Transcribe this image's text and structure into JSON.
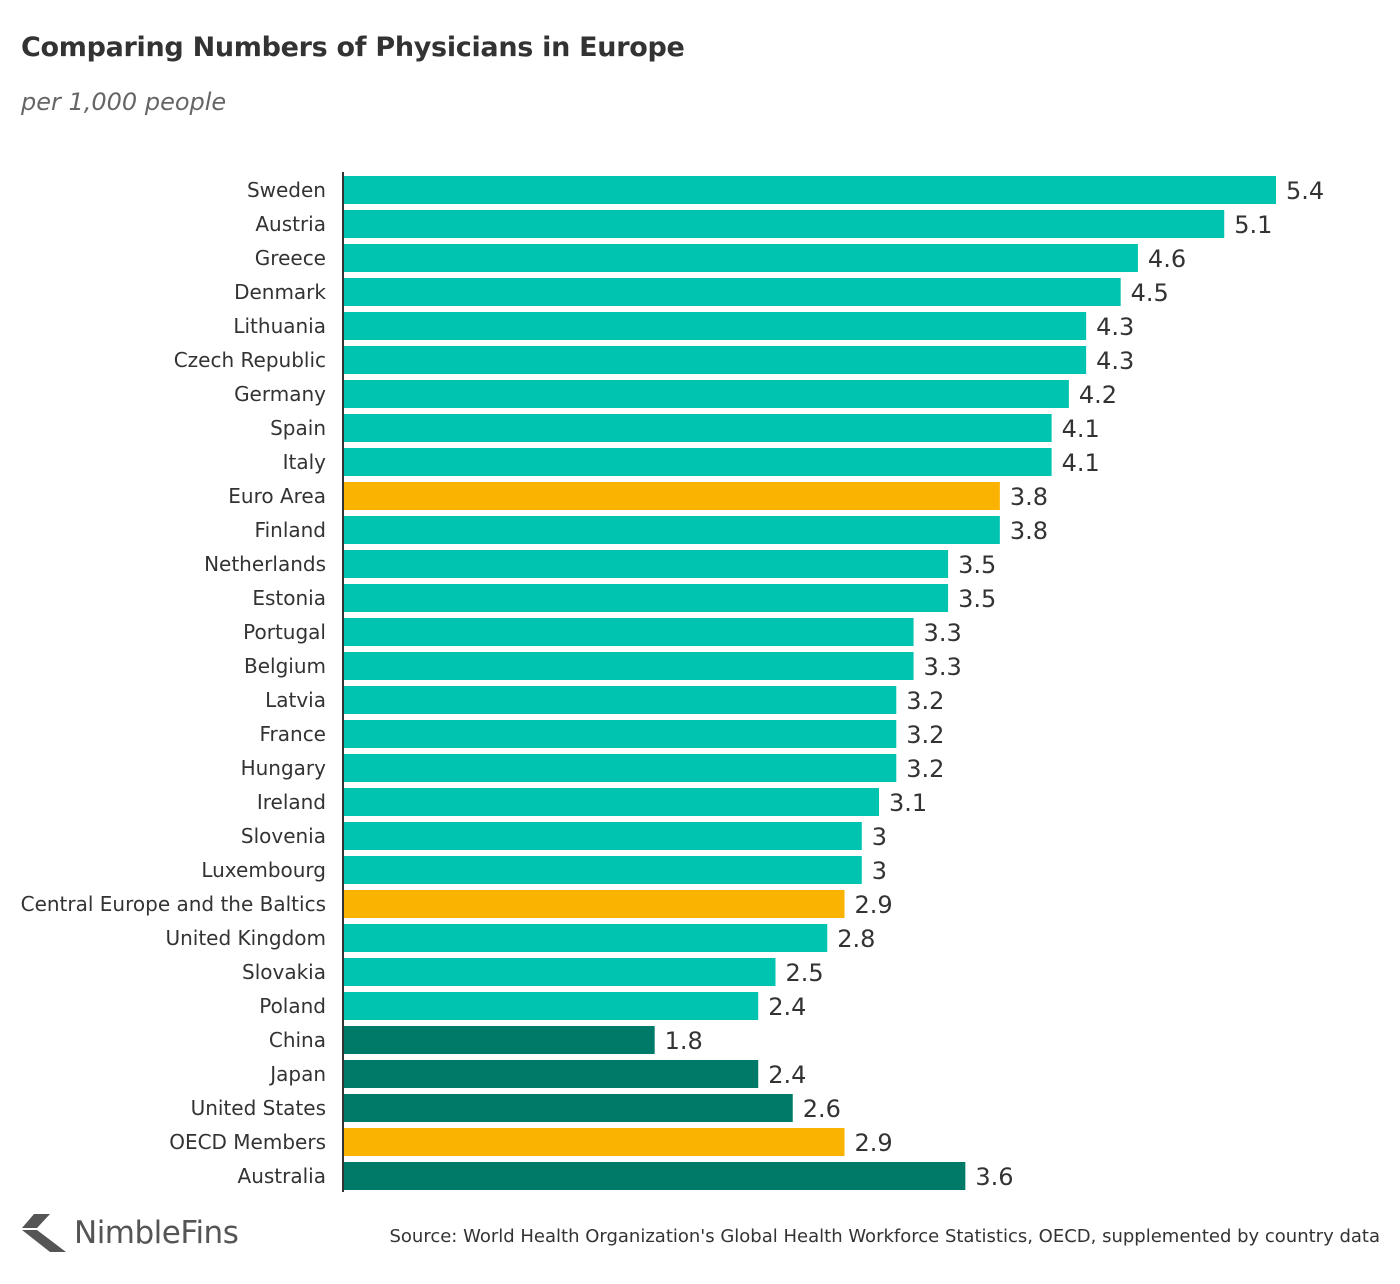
{
  "chart_data": {
    "type": "bar",
    "orientation": "horizontal",
    "title": "Comparing Numbers of Physicians in Europe",
    "subtitle": "per 1,000 people",
    "categories": [
      "Sweden",
      "Austria",
      "Greece",
      "Denmark",
      "Lithuania",
      "Czech Republic",
      "Germany",
      "Spain",
      "Italy",
      "Euro Area",
      "Finland",
      "Netherlands",
      "Estonia",
      "Portugal",
      "Belgium",
      "Latvia",
      "France",
      "Hungary",
      "Ireland",
      "Slovenia",
      "Luxembourg",
      "Central Europe and the Baltics",
      "United Kingdom",
      "Slovakia",
      "Poland",
      "China",
      "Japan",
      "United States",
      "OECD Members",
      "Australia"
    ],
    "values": [
      5.4,
      5.1,
      4.6,
      4.5,
      4.3,
      4.3,
      4.2,
      4.1,
      4.1,
      3.8,
      3.8,
      3.5,
      3.5,
      3.3,
      3.3,
      3.2,
      3.2,
      3.2,
      3.1,
      3,
      3,
      2.9,
      2.8,
      2.5,
      2.4,
      1.8,
      2.4,
      2.6,
      2.9,
      3.6
    ],
    "groups": [
      "europe",
      "europe",
      "europe",
      "europe",
      "europe",
      "europe",
      "europe",
      "europe",
      "europe",
      "aggregate",
      "europe",
      "europe",
      "europe",
      "europe",
      "europe",
      "europe",
      "europe",
      "europe",
      "europe",
      "europe",
      "europe",
      "aggregate",
      "europe",
      "europe",
      "europe",
      "other",
      "other",
      "other",
      "aggregate",
      "other"
    ],
    "colors": {
      "europe": "#00c4b0",
      "aggregate": "#f9b300",
      "other": "#007a68"
    },
    "xlim": [
      0,
      5.4
    ],
    "grid": false,
    "data_labels": true
  },
  "footer": {
    "logo": "NimbleFins",
    "source": "Source: World Health Organization's Global Health Workforce Statistics, OECD, supplemented by country data"
  }
}
